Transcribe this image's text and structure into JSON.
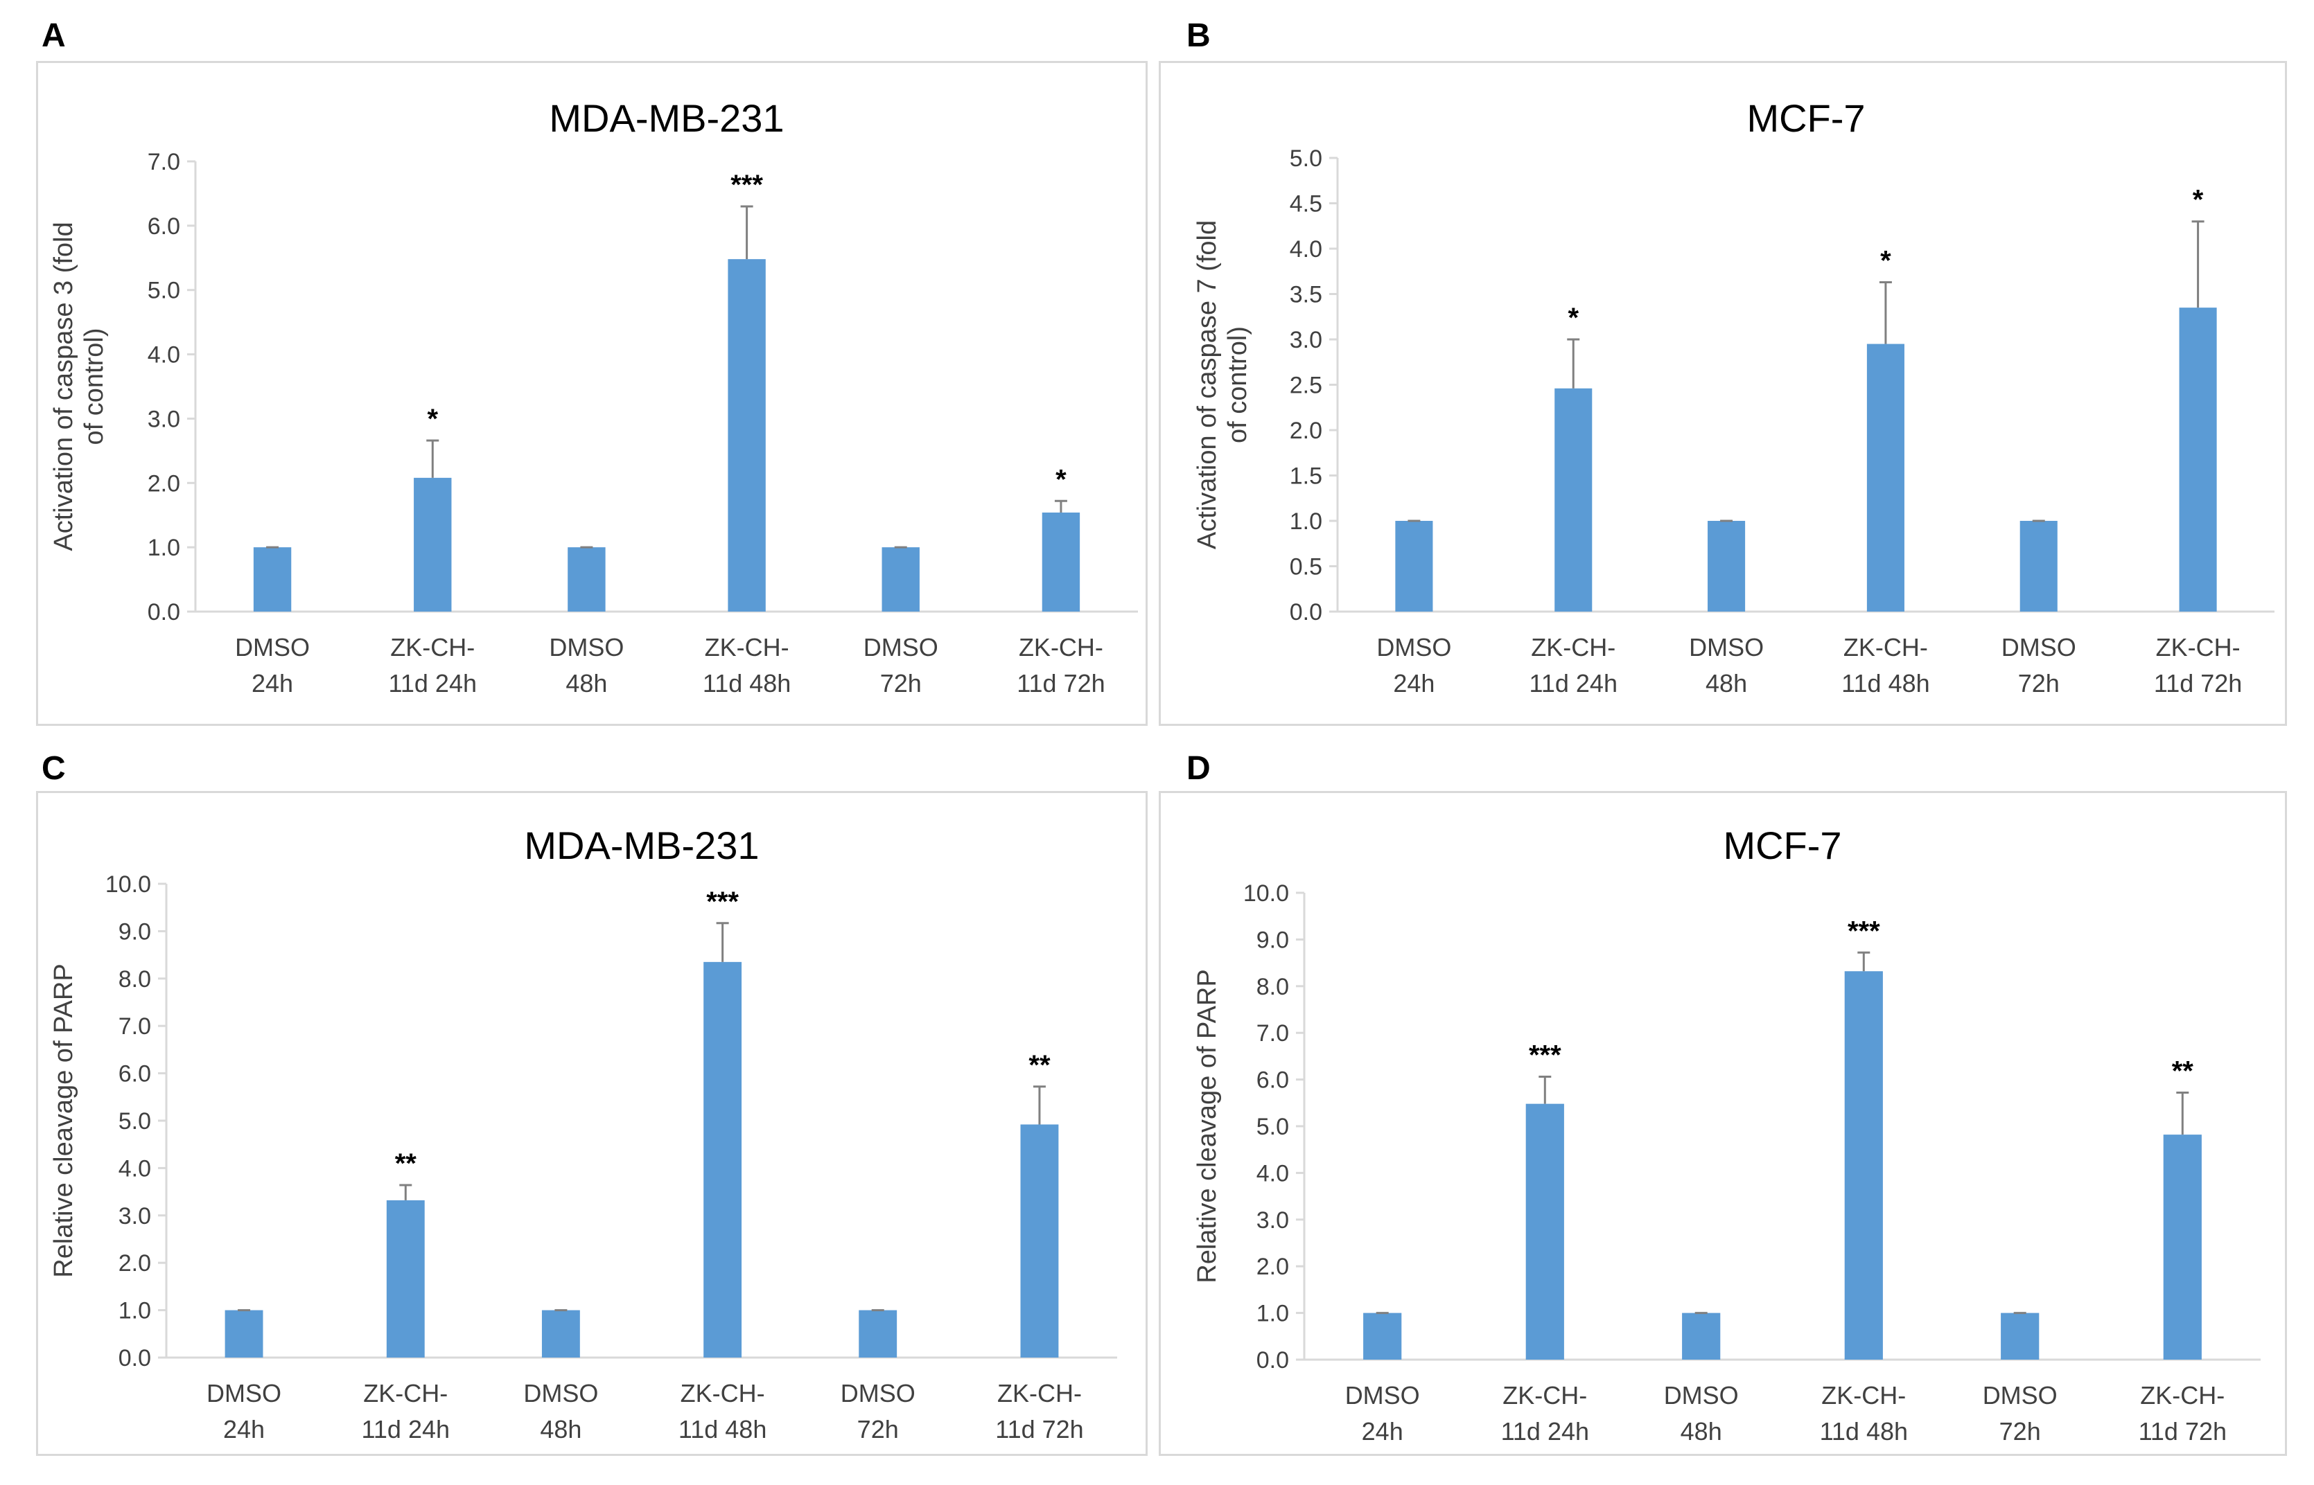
{
  "figure": {
    "bar_color": "#5b9bd5",
    "axis_color": "#d9d9d9",
    "error_color": "#808080",
    "text_color": "#404040"
  },
  "chart_data": [
    {
      "panel": "A",
      "type": "bar",
      "title": "MDA-MB-231",
      "ylabel": "Activation of caspase 3 (fold of control)",
      "ylim": [
        0,
        7
      ],
      "ytick_step": 1.0,
      "ytick_labels": [
        "0.0",
        "1.0",
        "2.0",
        "3.0",
        "4.0",
        "5.0",
        "6.0",
        "7.0"
      ],
      "grid": false,
      "categories": [
        [
          "DMSO",
          "24h"
        ],
        [
          "ZK-CH-",
          "11d 24h"
        ],
        [
          "DMSO",
          "48h"
        ],
        [
          "ZK-CH-",
          "11d 48h"
        ],
        [
          "DMSO",
          "72h"
        ],
        [
          "ZK-CH-",
          "11d 72h"
        ]
      ],
      "values": [
        1.0,
        2.08,
        1.0,
        5.48,
        1.0,
        1.54
      ],
      "errors": [
        0.0,
        0.58,
        0.0,
        0.82,
        0.0,
        0.18
      ],
      "significance": [
        "",
        "*",
        "",
        "***",
        "",
        "*"
      ]
    },
    {
      "panel": "B",
      "type": "bar",
      "title": "MCF-7",
      "ylabel": "Activation of caspase 7 (fold of control)",
      "ylim": [
        0,
        5
      ],
      "ytick_step": 0.5,
      "ytick_labels": [
        "0.0",
        "0.5",
        "1.0",
        "1.5",
        "2.0",
        "2.5",
        "3.0",
        "3.5",
        "4.0",
        "4.5",
        "5.0"
      ],
      "grid": false,
      "categories": [
        [
          "DMSO",
          "24h"
        ],
        [
          "ZK-CH-",
          "11d 24h"
        ],
        [
          "DMSO",
          "48h"
        ],
        [
          "ZK-CH-",
          "11d 48h"
        ],
        [
          "DMSO",
          "72h"
        ],
        [
          "ZK-CH-",
          "11d 72h"
        ]
      ],
      "values": [
        1.0,
        2.46,
        1.0,
        2.95,
        1.0,
        3.35
      ],
      "errors": [
        0.0,
        0.54,
        0.0,
        0.68,
        0.0,
        0.95
      ],
      "significance": [
        "",
        "*",
        "",
        "*",
        "",
        "*"
      ]
    },
    {
      "panel": "C",
      "type": "bar",
      "title": "MDA-MB-231",
      "ylabel": "Relative cleavage of PARP",
      "ylim": [
        0,
        10
      ],
      "ytick_step": 1.0,
      "ytick_labels": [
        "0.0",
        "1.0",
        "2.0",
        "3.0",
        "4.0",
        "5.0",
        "6.0",
        "7.0",
        "8.0",
        "9.0",
        "10.0"
      ],
      "grid": false,
      "categories": [
        [
          "DMSO",
          "24h"
        ],
        [
          "ZK-CH-",
          "11d 24h"
        ],
        [
          "DMSO",
          "48h"
        ],
        [
          "ZK-CH-",
          "11d 48h"
        ],
        [
          "DMSO",
          "72h"
        ],
        [
          "ZK-CH-",
          "11d 72h"
        ]
      ],
      "values": [
        1.0,
        3.32,
        1.0,
        8.35,
        1.0,
        4.92
      ],
      "errors": [
        0.0,
        0.32,
        0.0,
        0.82,
        0.0,
        0.8
      ],
      "significance": [
        "",
        "**",
        "",
        "***",
        "",
        "**"
      ]
    },
    {
      "panel": "D",
      "type": "bar",
      "title": "MCF-7",
      "ylabel": "Relative cleavage of PARP",
      "ylim": [
        0,
        10
      ],
      "ytick_step": 1.0,
      "ytick_labels": [
        "0.0",
        "1.0",
        "2.0",
        "3.0",
        "4.0",
        "5.0",
        "6.0",
        "7.0",
        "8.0",
        "9.0",
        "10.0"
      ],
      "grid": false,
      "categories": [
        [
          "DMSO",
          "24h"
        ],
        [
          "ZK-CH-",
          "11d 24h"
        ],
        [
          "DMSO",
          "48h"
        ],
        [
          "ZK-CH-",
          "11d 48h"
        ],
        [
          "DMSO",
          "72h"
        ],
        [
          "ZK-CH-",
          "11d 72h"
        ]
      ],
      "values": [
        1.0,
        5.48,
        1.0,
        8.32,
        1.0,
        4.82
      ],
      "errors": [
        0.0,
        0.58,
        0.0,
        0.4,
        0.0,
        0.9
      ],
      "significance": [
        "",
        "***",
        "",
        "***",
        "",
        "**"
      ]
    }
  ]
}
